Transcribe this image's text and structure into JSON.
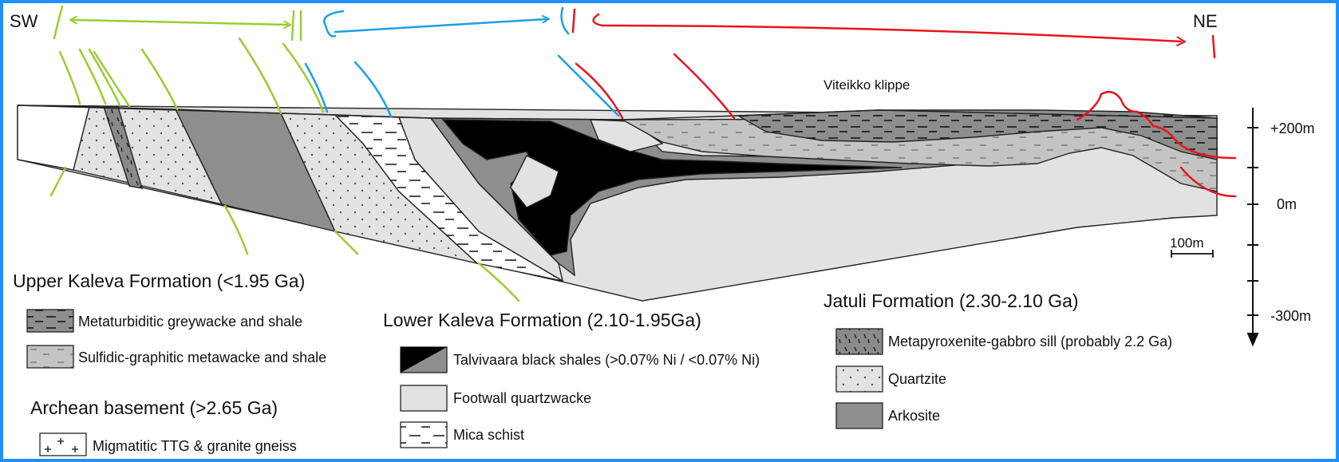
{
  "orientation": {
    "left": "SW",
    "right": "NE"
  },
  "klippe_label": "Viteikko klippe",
  "scale_bar": "100m",
  "elevations": [
    "+200m",
    "0m",
    "-300m"
  ],
  "colors": {
    "frame": "#1e90ff",
    "green_annotation": "#9acd32",
    "blue_annotation": "#1e9ee6",
    "red_annotation": "#e8141e"
  },
  "legend": {
    "upper_kaleva": {
      "title": "Upper Kaleva Formation (<1.95 Ga)",
      "items": [
        "Metaturbiditic greywacke and shale",
        "Sulfidic-graphitic metawacke and shale"
      ]
    },
    "archean": {
      "title": "Archean basement (>2.65 Ga)",
      "items": [
        "Migmatitic TTG & granite gneiss"
      ]
    },
    "lower_kaleva": {
      "title": "Lower Kaleva Formation (2.10-1.95Ga)",
      "items": [
        "Talvivaara black shales (>0.07% Ni / <0.07% Ni)",
        "Footwall quartzwacke",
        "Mica schist"
      ]
    },
    "jatuli": {
      "title": "Jatuli Formation (2.30-2.10 Ga)",
      "items": [
        "Metapyroxenite-gabbro sill (probably 2.2 Ga)",
        "Quartzite",
        "Arkosite"
      ]
    }
  }
}
